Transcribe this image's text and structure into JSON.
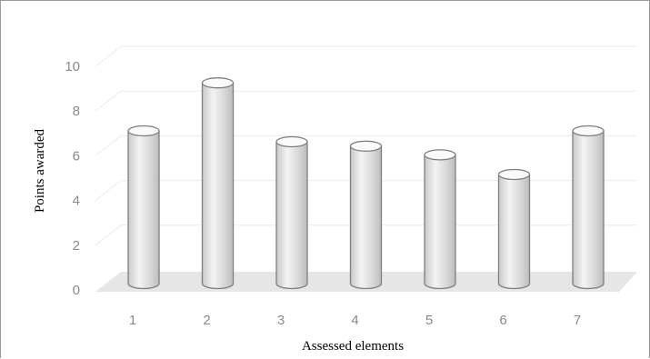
{
  "chart_data": {
    "type": "bar",
    "style": "3d-cylinder",
    "categories": [
      "1",
      "2",
      "3",
      "4",
      "5",
      "6",
      "7"
    ],
    "values": [
      7.0,
      9.2,
      6.5,
      6.3,
      5.9,
      5.0,
      7.0
    ],
    "xlabel": "Assessed elements",
    "ylabel": "Points awarded",
    "ylim": [
      0,
      10
    ],
    "yticks": [
      0,
      2,
      4,
      6,
      8,
      10
    ],
    "grid": true,
    "legend": "none",
    "colors": {
      "bar_fill_light": "#f2f2f2",
      "bar_fill_dark": "#c4c4c4",
      "bar_stroke": "#7f7f7f",
      "floor": "#e6e6e6",
      "grid": "#ececec",
      "tick_text": "#8a8a8a"
    }
  }
}
